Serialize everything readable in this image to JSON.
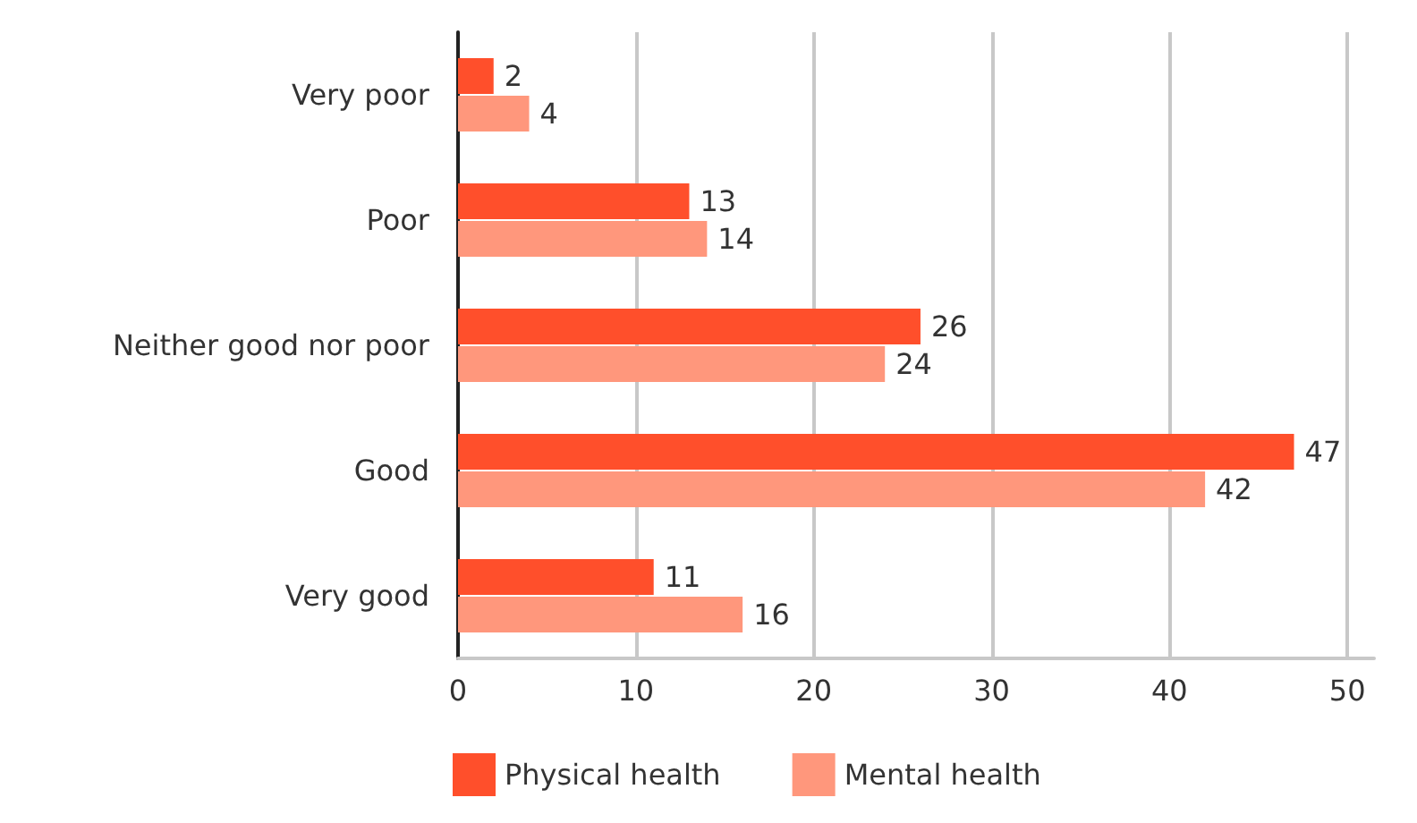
{
  "chart_data": {
    "type": "bar",
    "orientation": "horizontal",
    "categories": [
      "Very poor",
      "Poor",
      "Neither good nor poor",
      "Good",
      "Very good"
    ],
    "series": [
      {
        "name": "Physical health",
        "color": "#ff4f2b",
        "values": [
          2,
          13,
          26,
          47,
          11
        ]
      },
      {
        "name": "Mental health",
        "color": "#ff977c",
        "values": [
          4,
          14,
          24,
          42,
          16
        ]
      }
    ],
    "xlim": [
      0,
      51.5
    ],
    "xticks": [
      0,
      10,
      20,
      30,
      40,
      50
    ],
    "grid": "x",
    "legend": "bottom",
    "data_labels": true
  }
}
